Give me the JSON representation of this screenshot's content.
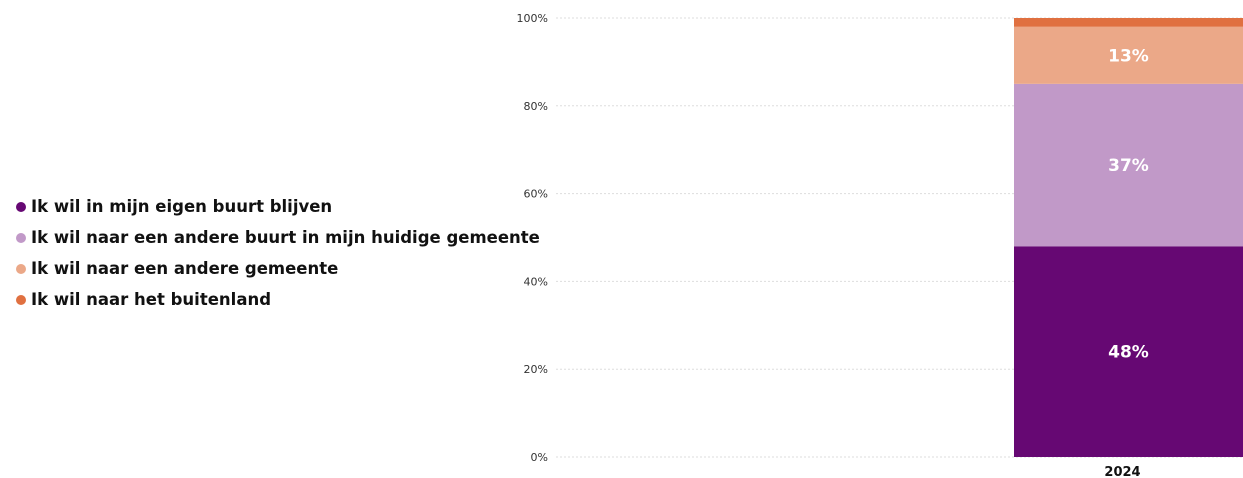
{
  "chart_data": {
    "type": "bar",
    "stacked": true,
    "categories": [
      "2024"
    ],
    "series": [
      {
        "name": "Ik wil in mijn eigen buurt blijven",
        "values": [
          48
        ],
        "color": "#660873",
        "label": "48%"
      },
      {
        "name": "Ik wil naar een andere buurt in mijn huidige gemeente",
        "values": [
          37
        ],
        "color": "#c199c8",
        "label": "37%"
      },
      {
        "name": "Ik wil naar een andere gemeente",
        "values": [
          13
        ],
        "color": "#eba888",
        "label": "13%"
      },
      {
        "name": "Ik wil naar het buitenland",
        "values": [
          2
        ],
        "color": "#e07040",
        "label": ""
      }
    ],
    "yticks": [
      "0%",
      "20%",
      "40%",
      "60%",
      "80%",
      "100%"
    ],
    "ylim": [
      0,
      100
    ],
    "grid": true,
    "legend_position": "left",
    "title": "",
    "xlabel": "",
    "ylabel": ""
  }
}
